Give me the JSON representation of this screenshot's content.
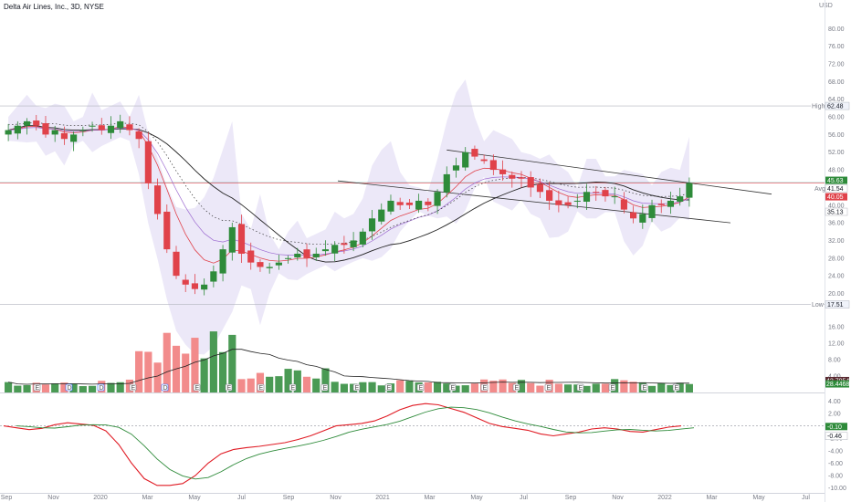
{
  "header": {
    "title": "Delta Air Lines, Inc., 3D, NYSE",
    "currency": "USD"
  },
  "colors": {
    "up": "#2e8b3a",
    "down": "#e0424a",
    "volume_up": "#4a9a54",
    "volume_down": "#f28b8b",
    "ema_fast": "#e0424a",
    "ema_slow": "#9c6ad0",
    "sma": "#222222",
    "macd": "#e01b24",
    "signal": "#2e8b3a",
    "bands": "#ece8f8",
    "accent": "#26a69a"
  },
  "chart_data": [
    {
      "type": "candlestick",
      "panel": "price",
      "x_ticks": [
        "Sep",
        "Nov",
        "2020",
        "Mar",
        "May",
        "Jul",
        "Sep",
        "Nov",
        "2021",
        "Mar",
        "May",
        "Jul",
        "Sep",
        "Nov",
        "2022",
        "Mar",
        "May",
        "Jul"
      ],
      "y_ticks": [
        20,
        24,
        28,
        32,
        36,
        40,
        44,
        48,
        52,
        56,
        60,
        64,
        68,
        72,
        76,
        80
      ],
      "ylim": [
        17,
        84
      ],
      "levels": [
        {
          "label": "High",
          "value": 62.48
        },
        {
          "label": "Low",
          "value": 17.51
        }
      ],
      "price_tags": [
        {
          "value": "45.63",
          "color": "#2e8b3a"
        },
        {
          "value": "41.54",
          "color": "#ffffff"
        },
        {
          "value": "40.05",
          "color": "#e0424a"
        },
        {
          "value": "35.13",
          "color": "#ffffff"
        }
      ],
      "avg_label": "Avg",
      "approx_closes": [
        57,
        58,
        59,
        58,
        56,
        57,
        55,
        56,
        57,
        58,
        57,
        58,
        59,
        57,
        55,
        45,
        38,
        30,
        24,
        22,
        21,
        22,
        25,
        30,
        35,
        29,
        27,
        26,
        26,
        27,
        28,
        29,
        28,
        29,
        30,
        31,
        31,
        32,
        34,
        37,
        39,
        41,
        40,
        40,
        41,
        40,
        43,
        47,
        49,
        52,
        51,
        50,
        48,
        47,
        46,
        46,
        44,
        43,
        41,
        40,
        40,
        41,
        43,
        43,
        42,
        42,
        39,
        37,
        38,
        40,
        40,
        41,
        42,
        45
      ],
      "events": [
        "E",
        "D",
        "D",
        "E",
        "D",
        "E",
        "E",
        "E",
        "E",
        "E",
        "E",
        "E",
        "E",
        "E",
        "E",
        "E",
        "E",
        "E",
        "E",
        "E",
        "E"
      ]
    },
    {
      "type": "bar",
      "panel": "volume",
      "y_ticks": [
        4,
        8,
        12,
        16
      ],
      "ylim": [
        0,
        20
      ],
      "tags": [
        "42.7954M",
        "28.4468"
      ]
    },
    {
      "type": "line",
      "panel": "macd",
      "y_ticks": [
        -10,
        -8,
        -6,
        -4,
        -2,
        0,
        2,
        4
      ],
      "ylim": [
        -10.8,
        4.8
      ],
      "tags": [
        "-0.10",
        "-0.46"
      ],
      "macd": [
        0,
        -0.3,
        -0.6,
        -0.4,
        0.2,
        0.5,
        0.3,
        0.1,
        -0.8,
        -3,
        -6,
        -8.5,
        -9.6,
        -9.6,
        -9.3,
        -8,
        -6,
        -4.5,
        -3.8,
        -3.5,
        -3.3,
        -3,
        -2.7,
        -2.2,
        -1.6,
        -0.8,
        0,
        0.2,
        0.4,
        0.8,
        1.6,
        2.6,
        3.3,
        3.6,
        3.4,
        2.8,
        2.2,
        1.3,
        0.4,
        -0.1,
        -0.4,
        -0.7,
        -1.3,
        -1.6,
        -1.3,
        -1,
        -0.5,
        -0.3,
        -0.5,
        -0.9,
        -1,
        -0.6,
        -0.2,
        0
      ]
    }
  ]
}
